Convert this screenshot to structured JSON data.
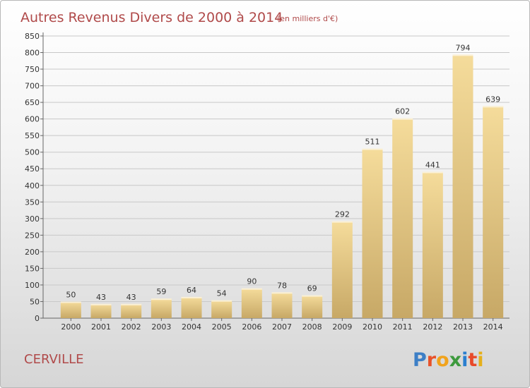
{
  "title": "Autres Revenus Divers de 2000 à 2014",
  "subtitle": "(en milliers d'€)",
  "location": "CERVILLE",
  "brand": {
    "letters": [
      "P",
      "r",
      "o",
      "x",
      "i",
      "t",
      "i"
    ],
    "colors": [
      "#3d7fc6",
      "#e8522a",
      "#f1a31c",
      "#3d9a3d",
      "#2a7fcf",
      "#e84a2a",
      "#e6b01a"
    ]
  },
  "colors": {
    "bar_light": "#f5dc9b",
    "bar_dark": "#c7a866",
    "title": "#b04a4a"
  },
  "chart_data": {
    "type": "bar",
    "categories": [
      "2000",
      "2001",
      "2002",
      "2003",
      "2004",
      "2005",
      "2006",
      "2007",
      "2008",
      "2009",
      "2010",
      "2011",
      "2012",
      "2013",
      "2014"
    ],
    "values": [
      50,
      43,
      43,
      59,
      64,
      54,
      90,
      78,
      69,
      292,
      511,
      602,
      441,
      794,
      639
    ],
    "ylim": [
      0,
      850
    ],
    "yticks": [
      "0",
      "50",
      "100",
      "150",
      "200",
      "250",
      "300",
      "350",
      "400",
      "450",
      "500",
      "550",
      "600",
      "650",
      "700",
      "750",
      "800",
      "850"
    ],
    "grid": true
  }
}
